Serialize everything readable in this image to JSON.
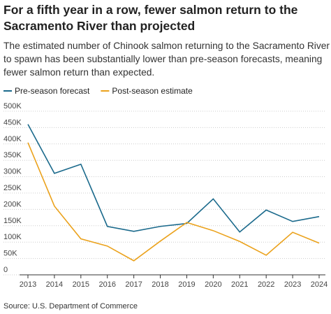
{
  "chart_data": {
    "type": "line",
    "title": "For a fifth year in a row, fewer salmon return to the Sacramento River than projected",
    "subtitle": "The estimated number of Chinook salmon returning to the Sacramento River to spawn has been substantially lower than pre-season forecasts, meaning fewer salmon return than expected.",
    "source": "Source: U.S. Department of Commerce",
    "x": [
      2013,
      2014,
      2015,
      2016,
      2017,
      2018,
      2019,
      2020,
      2021,
      2022,
      2023,
      2024
    ],
    "xlim": [
      2013,
      2024
    ],
    "series": [
      {
        "name": "Pre-season forecast",
        "color": "#1b6a8c",
        "values": [
          460000,
          310000,
          338000,
          148000,
          133000,
          148000,
          157000,
          232000,
          131000,
          198000,
          163000,
          178000
        ]
      },
      {
        "name": "Post-season estimate",
        "color": "#eba21c",
        "values": [
          404000,
          210000,
          110000,
          88000,
          43000,
          103000,
          160000,
          135000,
          102000,
          60000,
          130000,
          97000
        ]
      }
    ],
    "ylim": [
      0,
      500000
    ],
    "yticks": [
      0,
      {
        "value": 50000,
        "label": "50K"
      },
      {
        "value": 100000,
        "label": "100K"
      },
      {
        "value": 150000,
        "label": "150K"
      },
      {
        "value": 200000,
        "label": "200K"
      },
      {
        "value": 250000,
        "label": "250K"
      },
      {
        "value": 300000,
        "label": "300K"
      },
      {
        "value": 350000,
        "label": "350K"
      },
      {
        "value": 400000,
        "label": "400K"
      },
      {
        "value": 450000,
        "label": "450K"
      },
      {
        "value": 500000,
        "label": "500K"
      }
    ],
    "grid": true,
    "legend": "top-left"
  }
}
